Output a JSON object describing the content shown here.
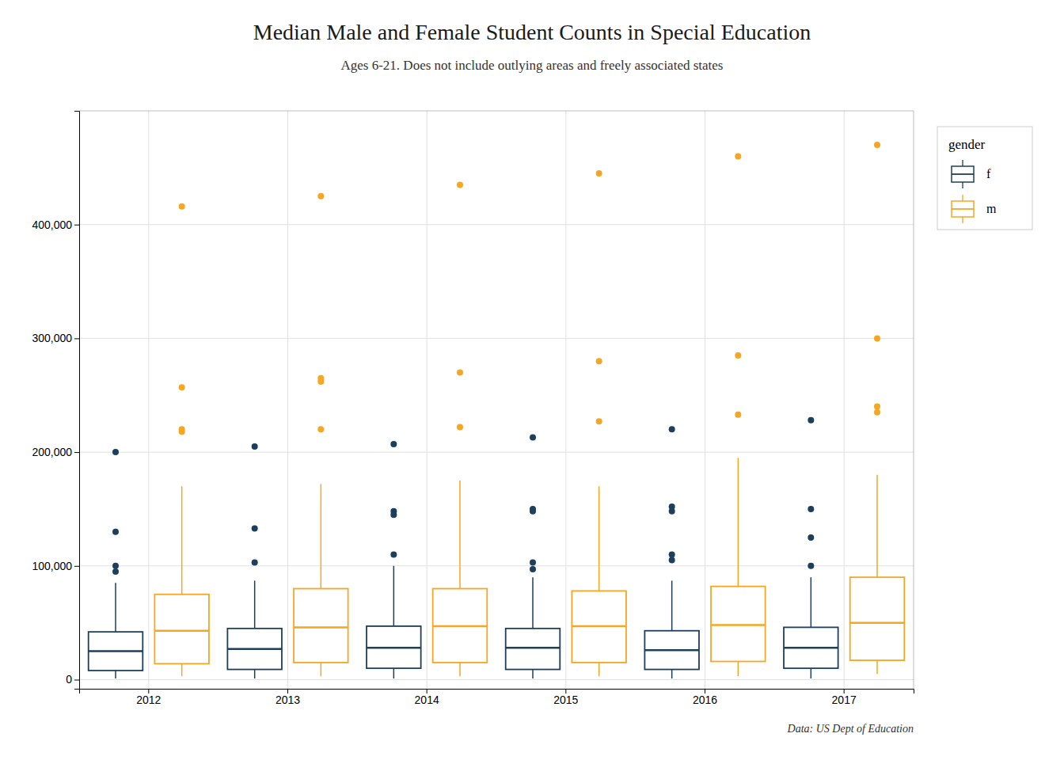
{
  "chart_data": {
    "type": "box",
    "title": "Median Male and Female Student Counts in Special Education",
    "subtitle": "Ages 6-21. Does not include outlying areas and freely associated states",
    "caption": "Data: US Dept of Education",
    "categories": [
      "2012",
      "2013",
      "2014",
      "2015",
      "2016",
      "2017"
    ],
    "legend_title": "gender",
    "legend": "right",
    "grid": true,
    "ylim": [
      -8000,
      500000
    ],
    "yticks": [
      0,
      {
        "value": 100000,
        "label": "100,000"
      },
      {
        "value": 200000,
        "label": "200,000"
      },
      {
        "value": 300000,
        "label": "300,000"
      },
      {
        "value": 400000,
        "label": "400,000"
      }
    ],
    "series": [
      {
        "name": "f",
        "color": "#1c3f5e",
        "values": [
          {
            "q1": 8000,
            "median": 25000,
            "q3": 42000,
            "whisker_low": 1000,
            "whisker_high": 85000,
            "outliers": [
              95000,
              100000,
              130000,
              200000
            ]
          },
          {
            "q1": 9000,
            "median": 27000,
            "q3": 45000,
            "whisker_low": 1000,
            "whisker_high": 87000,
            "outliers": [
              103000,
              133000,
              205000
            ]
          },
          {
            "q1": 10000,
            "median": 28000,
            "q3": 47000,
            "whisker_low": 1000,
            "whisker_high": 100000,
            "outliers": [
              110000,
              145000,
              148000,
              207000
            ]
          },
          {
            "q1": 9000,
            "median": 28000,
            "q3": 45000,
            "whisker_low": 1000,
            "whisker_high": 90000,
            "outliers": [
              97000,
              103000,
              148000,
              150000,
              213000
            ]
          },
          {
            "q1": 9000,
            "median": 26000,
            "q3": 43000,
            "whisker_low": 1000,
            "whisker_high": 87000,
            "outliers": [
              105000,
              110000,
              148000,
              152000,
              220000
            ]
          },
          {
            "q1": 10000,
            "median": 28000,
            "q3": 46000,
            "whisker_low": 1000,
            "whisker_high": 90000,
            "outliers": [
              100000,
              125000,
              150000,
              228000
            ]
          }
        ]
      },
      {
        "name": "m",
        "color": "#f5a623",
        "values": [
          {
            "q1": 14000,
            "median": 43000,
            "q3": 75000,
            "whisker_low": 3000,
            "whisker_high": 170000,
            "outliers": [
              218000,
              220000,
              257000,
              416000
            ]
          },
          {
            "q1": 15000,
            "median": 46000,
            "q3": 80000,
            "whisker_low": 3000,
            "whisker_high": 172000,
            "outliers": [
              220000,
              262000,
              265000,
              425000
            ]
          },
          {
            "q1": 15000,
            "median": 47000,
            "q3": 80000,
            "whisker_low": 3000,
            "whisker_high": 175000,
            "outliers": [
              222000,
              270000,
              435000
            ]
          },
          {
            "q1": 15000,
            "median": 47000,
            "q3": 78000,
            "whisker_low": 3000,
            "whisker_high": 170000,
            "outliers": [
              227000,
              280000,
              445000
            ]
          },
          {
            "q1": 16000,
            "median": 48000,
            "q3": 82000,
            "whisker_low": 3000,
            "whisker_high": 195000,
            "outliers": [
              233000,
              285000,
              460000
            ]
          },
          {
            "q1": 17000,
            "median": 50000,
            "q3": 90000,
            "whisker_low": 5000,
            "whisker_high": 180000,
            "outliers": [
              235000,
              240000,
              300000,
              470000
            ]
          }
        ]
      }
    ]
  }
}
